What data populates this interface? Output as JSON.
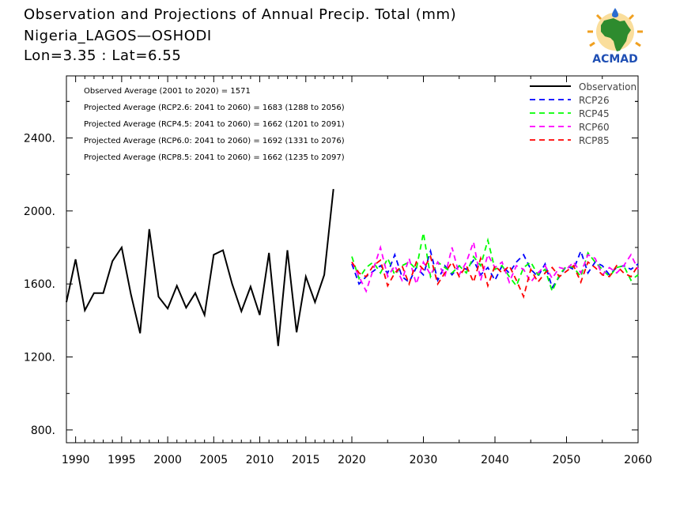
{
  "header": {
    "title": "Observation and Projections of Annual Precip. Total (mm)",
    "location": "Nigeria_LAGOS—OSHODI",
    "coords": "Lon=3.35 : Lat=6.55"
  },
  "logo": {
    "text": "ACMAD",
    "icon": "africa-map-icon"
  },
  "annotations": [
    "Observed Average (2001 to 2020) = 1571",
    "Projected Average (RCP2.6: 2041 to 2060) = 1683 (1288 to 2056)",
    "Projected Average (RCP4.5: 2041 to 2060) = 1662 (1201 to 2091)",
    "Projected Average (RCP6.0: 2041 to 2060) = 1692 (1331 to 2076)",
    "Projected Average (RCP8.5: 2041 to 2060) = 1662 (1235 to 2097)"
  ],
  "chart_data": {
    "type": "line",
    "xlim": [
      1989,
      2060
    ],
    "ylim": [
      730,
      2740
    ],
    "yticks": [
      800,
      1200,
      1600,
      2000,
      2400
    ],
    "ytick_labels": [
      "800.",
      "1200.",
      "1600.",
      "2000.",
      "2400."
    ],
    "xticks_left": [
      1990,
      1995,
      2000,
      2005,
      2010,
      2015,
      2020
    ],
    "xticks_right": [
      2030,
      2040,
      2050,
      2060
    ],
    "xtick_labels_left": [
      "1990",
      "1995",
      "2000",
      "2005",
      "2010",
      "2015",
      "2020"
    ],
    "xtick_labels_right": [
      "2030",
      "2040",
      "2050",
      "2060"
    ],
    "grid": false,
    "legend_position": "top-right",
    "series": [
      {
        "name": "Observation",
        "color": "#000000",
        "dash": "solid",
        "x": [
          1989,
          1990,
          1991,
          1992,
          1993,
          1994,
          1995,
          1996,
          1997,
          1998,
          1999,
          2000,
          2001,
          2002,
          2003,
          2004,
          2005,
          2006,
          2007,
          2008,
          2009,
          2010,
          2011,
          2012,
          2013,
          2014,
          2015,
          2016,
          2017,
          2018,
          2019,
          2020
        ],
        "values": [
          1500,
          1735,
          1455,
          1550,
          1550,
          1725,
          1800,
          1545,
          1330,
          1900,
          1530,
          1465,
          1590,
          1470,
          1550,
          1430,
          1760,
          1785,
          1600,
          1450,
          1585,
          1430,
          1770,
          1260,
          1785,
          1335,
          1640,
          1500,
          1650,
          2120,
          null,
          null
        ]
      },
      {
        "name": "RCP26",
        "color": "#0000ff",
        "dash": "dashed",
        "x": [
          2020,
          2021,
          2022,
          2023,
          2024,
          2025,
          2026,
          2027,
          2028,
          2029,
          2030,
          2031,
          2032,
          2033,
          2034,
          2035,
          2036,
          2037,
          2038,
          2039,
          2040,
          2041,
          2042,
          2043,
          2044,
          2045,
          2046,
          2047,
          2048,
          2049,
          2050,
          2051,
          2052,
          2053,
          2054,
          2055,
          2056,
          2057,
          2058,
          2059,
          2060
        ],
        "values": [
          1710,
          1600,
          1640,
          1670,
          1700,
          1660,
          1760,
          1640,
          1610,
          1690,
          1650,
          1780,
          1620,
          1700,
          1650,
          1700,
          1680,
          1730,
          1650,
          1690,
          1620,
          1700,
          1660,
          1720,
          1760,
          1680,
          1640,
          1710,
          1580,
          1640,
          1700,
          1680,
          1780,
          1660,
          1720,
          1700,
          1650,
          1690,
          1700,
          1680,
          1710
        ]
      },
      {
        "name": "RCP45",
        "color": "#00ff00",
        "dash": "dashed",
        "x": [
          2020,
          2021,
          2022,
          2023,
          2024,
          2025,
          2026,
          2027,
          2028,
          2029,
          2030,
          2031,
          2032,
          2033,
          2034,
          2035,
          2036,
          2037,
          2038,
          2039,
          2040,
          2041,
          2042,
          2043,
          2044,
          2045,
          2046,
          2047,
          2048,
          2049,
          2050,
          2051,
          2052,
          2053,
          2054,
          2055,
          2056,
          2057,
          2058,
          2059,
          2060
        ],
        "values": [
          1750,
          1630,
          1690,
          1720,
          1660,
          1740,
          1650,
          1700,
          1720,
          1680,
          1880,
          1640,
          1720,
          1690,
          1660,
          1700,
          1660,
          1750,
          1700,
          1840,
          1680,
          1700,
          1640,
          1590,
          1690,
          1720,
          1650,
          1680,
          1560,
          1650,
          1700,
          1690,
          1640,
          1770,
          1720,
          1680,
          1640,
          1690,
          1700,
          1620,
          1650
        ]
      },
      {
        "name": "RCP60",
        "color": "#ff00ff",
        "dash": "dashed",
        "x": [
          2020,
          2021,
          2022,
          2023,
          2024,
          2025,
          2026,
          2027,
          2028,
          2029,
          2030,
          2031,
          2032,
          2033,
          2034,
          2035,
          2036,
          2037,
          2038,
          2039,
          2040,
          2041,
          2042,
          2043,
          2044,
          2045,
          2046,
          2047,
          2048,
          2049,
          2050,
          2051,
          2052,
          2053,
          2054,
          2055,
          2056,
          2057,
          2058,
          2059,
          2060
        ],
        "values": [
          1720,
          1640,
          1560,
          1680,
          1800,
          1640,
          1700,
          1620,
          1740,
          1600,
          1720,
          1650,
          1720,
          1640,
          1800,
          1650,
          1720,
          1830,
          1620,
          1760,
          1690,
          1720,
          1610,
          1700,
          1680,
          1610,
          1660,
          1700,
          1630,
          1690,
          1680,
          1720,
          1660,
          1760,
          1740,
          1650,
          1690,
          1660,
          1700,
          1760,
          1680
        ]
      },
      {
        "name": "RCP85",
        "color": "#ff0000",
        "dash": "dashed",
        "x": [
          2020,
          2021,
          2022,
          2023,
          2024,
          2025,
          2026,
          2027,
          2028,
          2029,
          2030,
          2031,
          2032,
          2033,
          2034,
          2035,
          2036,
          2037,
          2038,
          2039,
          2040,
          2041,
          2042,
          2043,
          2044,
          2045,
          2046,
          2047,
          2048,
          2049,
          2050,
          2051,
          2052,
          2053,
          2054,
          2055,
          2056,
          2057,
          2058,
          2059,
          2060
        ],
        "values": [
          1720,
          1660,
          1640,
          1700,
          1730,
          1590,
          1660,
          1700,
          1600,
          1720,
          1680,
          1750,
          1600,
          1660,
          1720,
          1640,
          1700,
          1610,
          1740,
          1590,
          1700,
          1660,
          1700,
          1620,
          1530,
          1680,
          1610,
          1660,
          1690,
          1640,
          1670,
          1700,
          1610,
          1720,
          1690,
          1650,
          1640,
          1700,
          1660,
          1640,
          1700
        ]
      }
    ]
  }
}
